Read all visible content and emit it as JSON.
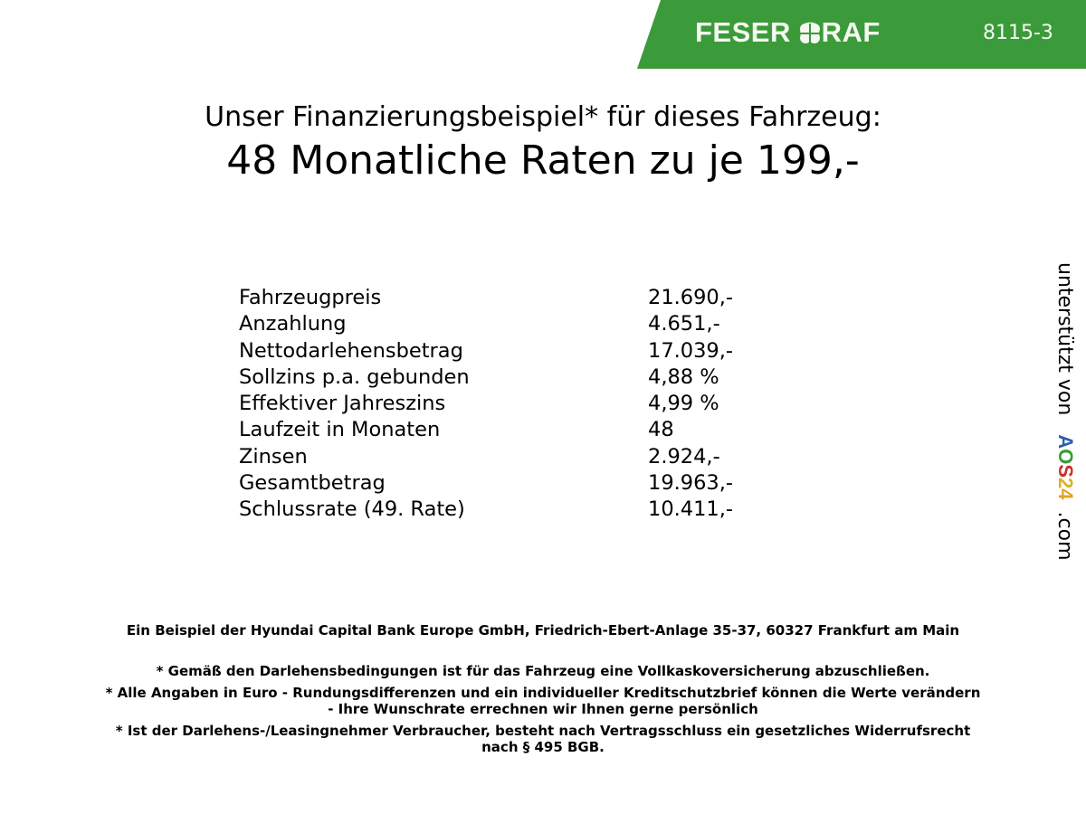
{
  "header": {
    "brand": "FESER GRAF",
    "code": "8115-3",
    "brand_color": "#3b9b3a"
  },
  "title": {
    "line1": "Unser Finanzierungsbeispiel* für dieses Fahrzeug:",
    "line2": "48 Monatliche Raten zu je 199,-"
  },
  "table": [
    {
      "label": "Fahrzeugpreis",
      "value": "21.690,-"
    },
    {
      "label": "Anzahlung",
      "value": "4.651,-"
    },
    {
      "label": "Nettodarlehensbetrag",
      "value": "17.039,-"
    },
    {
      "label": "Sollzins p.a. gebunden",
      "value": "4,88 %"
    },
    {
      "label": "Effektiver Jahreszins",
      "value": "4,99 %"
    },
    {
      "label": "Laufzeit in Monaten",
      "value": "48"
    },
    {
      "label": "Zinsen",
      "value": "2.924,-"
    },
    {
      "label": "Gesamtbetrag",
      "value": "19.963,-"
    },
    {
      "label": "Schlussrate (49. Rate)",
      "value": "10.411,-"
    }
  ],
  "footer": {
    "bank": "Ein Beispiel der Hyundai Capital Bank Europe GmbH, Friedrich-Ebert-Anlage 35-37, 60327 Frankfurt am Main",
    "note1": "* Gemäß den Darlehensbedingungen ist für das Fahrzeug eine Vollkaskoversicherung abzuschließen.",
    "note2a": "* Alle Angaben in Euro - Rundungsdifferenzen und ein individueller Kreditschutzbrief können die Werte verändern",
    "note2b": "- Ihre Wunschrate errechnen wir Ihnen gerne persönlich",
    "note3a": "* Ist der Darlehens-/Leasingnehmer Verbraucher, besteht nach Vertragsschluss ein gesetzliches Widerrufsrecht",
    "note3b": "nach § 495 BGB."
  },
  "side": {
    "prefix": "unterstützt von",
    "logo": [
      "A",
      "O",
      "S",
      "2",
      "4"
    ],
    "suffix": ".com",
    "logo_colors": [
      "#2f5fa8",
      "#3a9a3a",
      "#c8302c",
      "#e0b020",
      "#e8a020"
    ]
  }
}
